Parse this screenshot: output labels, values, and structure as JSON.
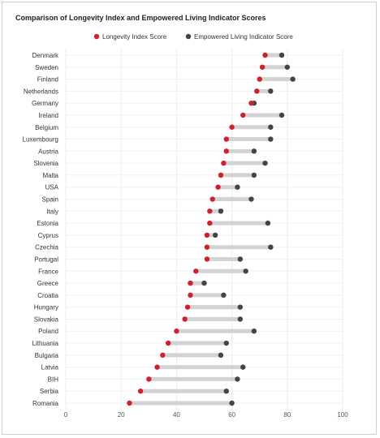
{
  "chart_data": {
    "type": "dumbbell",
    "title": "Comparison of Longevity Index and Empowered Living Indicator Scores",
    "xlim": [
      0,
      100
    ],
    "xticks": [
      0,
      20,
      40,
      60,
      80,
      100
    ],
    "grid": true,
    "legend_position": "top-center",
    "colors": {
      "longevity": "#d0202a",
      "empowered": "#444444",
      "connector": "#d3d3d3"
    },
    "series": [
      {
        "name": "Longevity Index Score",
        "key": "longevity"
      },
      {
        "name": "Empowered Living Indicator Score",
        "key": "empowered"
      }
    ],
    "categories": [
      "Denmark",
      "Sweden",
      "Finland",
      "Netherlands",
      "Germany",
      "Ireland",
      "Belgium",
      "Luxembourg",
      "Austria",
      "Slovenia",
      "Malta",
      "USA",
      "Spain",
      "Italy",
      "Estonia",
      "Cyprus",
      "Czechia",
      "Portugal",
      "France",
      "Greece",
      "Croatia",
      "Hungary",
      "Slovakia",
      "Poland",
      "Lithuania",
      "Bulgaria",
      "Latvia",
      "BIH",
      "Serbia",
      "Romania"
    ],
    "longevity": [
      72,
      71,
      70,
      69,
      67,
      64,
      60,
      58,
      58,
      57,
      56,
      55,
      53,
      52,
      52,
      51,
      51,
      51,
      47,
      45,
      45,
      44,
      43,
      40,
      37,
      35,
      33,
      30,
      27,
      23
    ],
    "empowered": [
      78,
      80,
      82,
      74,
      68,
      78,
      74,
      74,
      68,
      72,
      68,
      62,
      67,
      56,
      73,
      54,
      74,
      63,
      65,
      50,
      57,
      63,
      63,
      68,
      58,
      56,
      64,
      62,
      58,
      60
    ]
  }
}
